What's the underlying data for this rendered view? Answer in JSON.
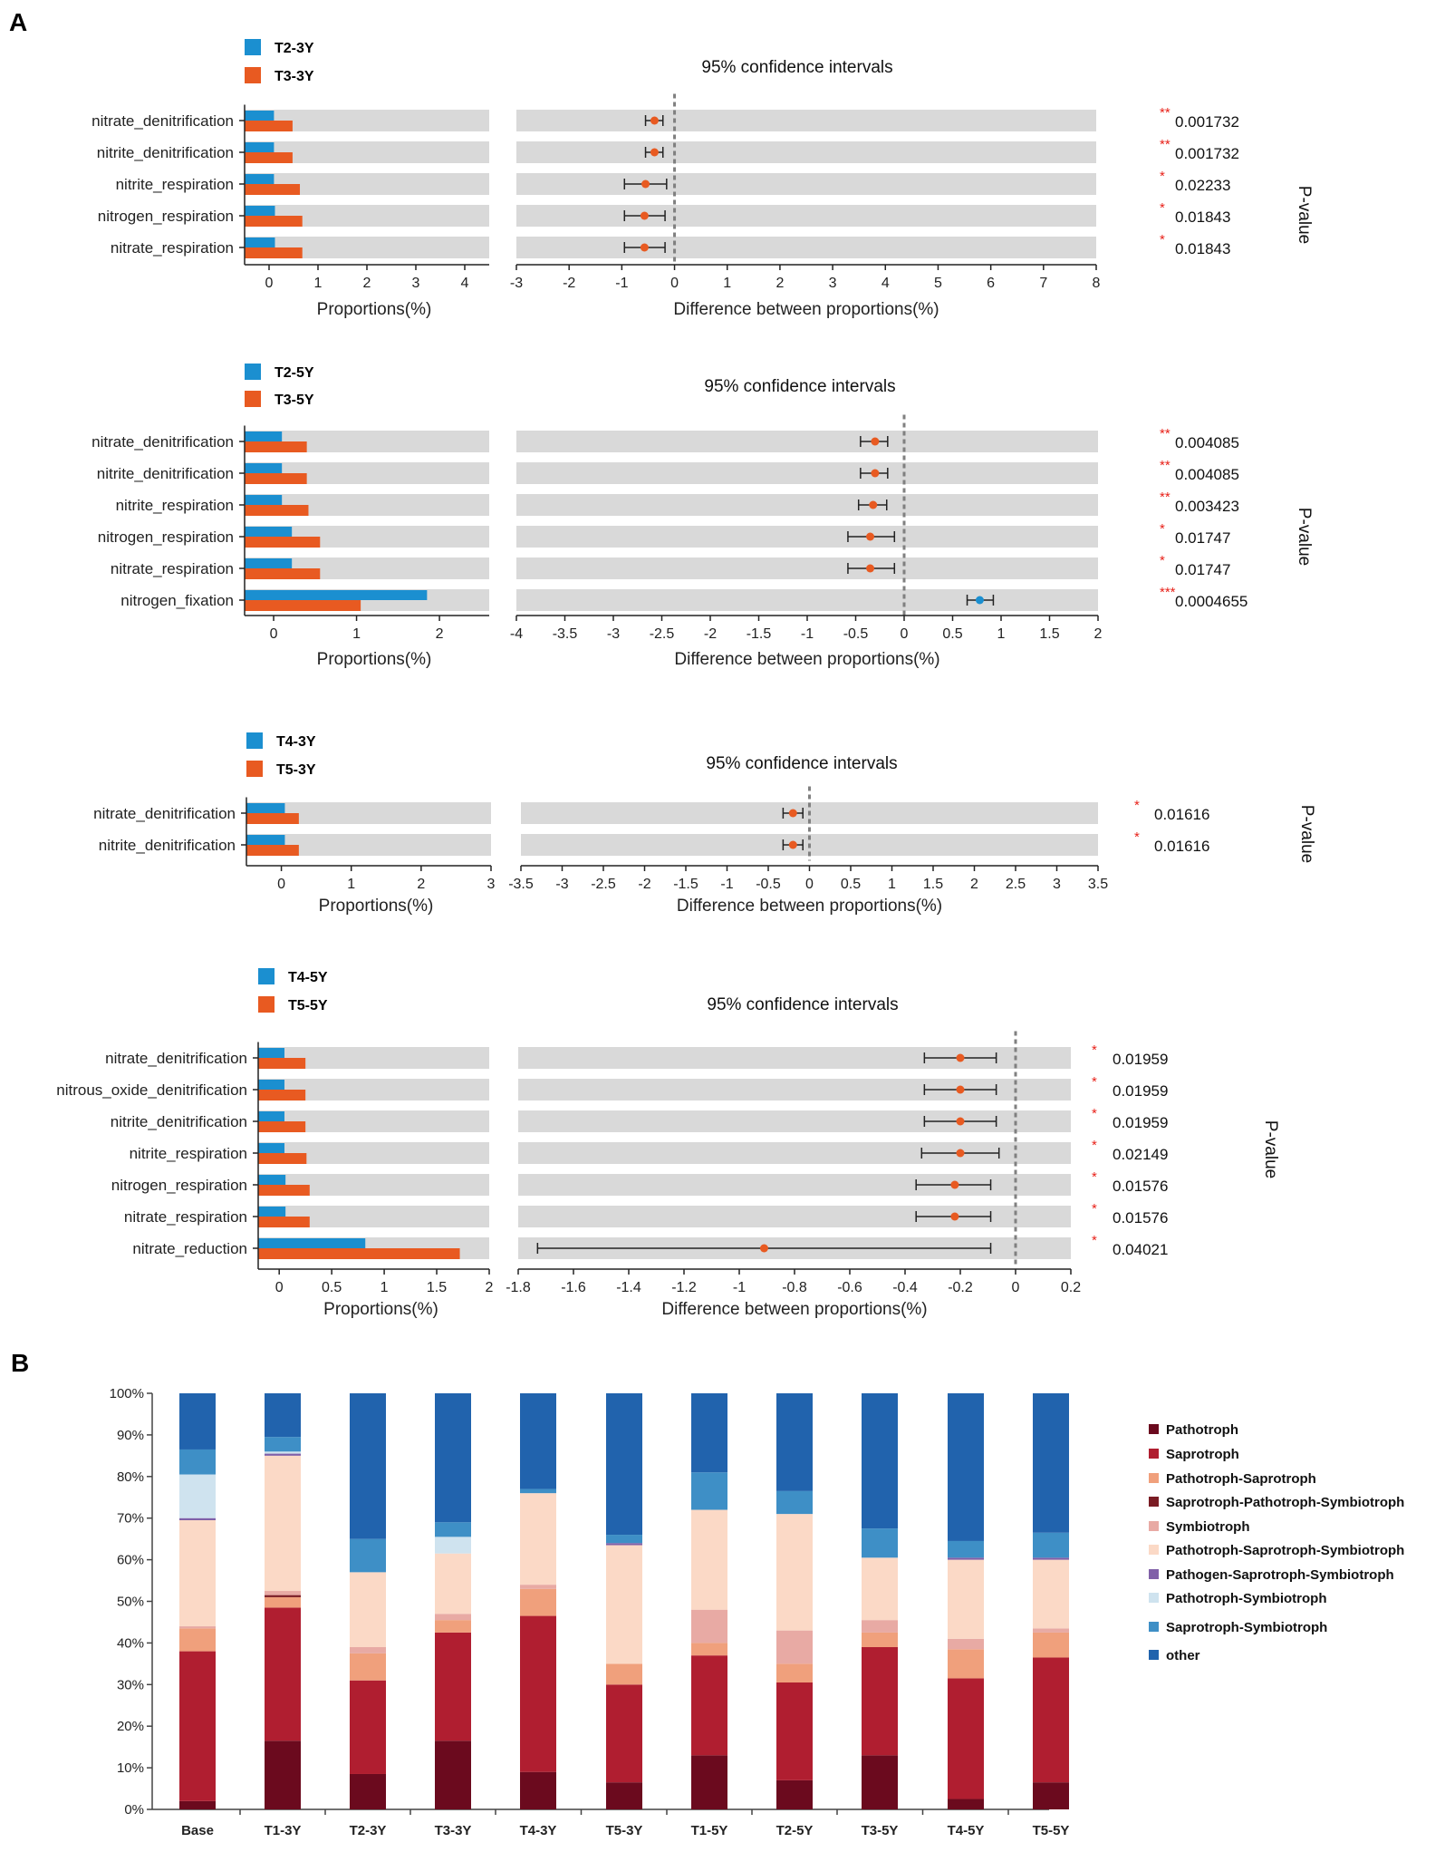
{
  "panel_labels": {
    "a": "A",
    "b": "B"
  },
  "colors": {
    "blue": "#1b8fd0",
    "orange": "#e85a21",
    "row_bg": "#d9d9d9",
    "star": "#e8221a",
    "zero_line": "#808080"
  },
  "chart_data": [
    {
      "type": "bar",
      "id": "p1",
      "legend": [
        "T2-3Y",
        "T3-3Y"
      ],
      "ci_title": "95% confidence intervals",
      "left_xlabel": "Proportions(%)",
      "right_xlabel": "Difference between proportions(%)",
      "pvalue_label": "P-value",
      "left_xlim": [
        -0.5,
        4.5
      ],
      "left_ticks": [
        0,
        1,
        2,
        3,
        4
      ],
      "left_tick_labels": [
        "0",
        "1",
        "2",
        "3",
        "4"
      ],
      "right_xlim": [
        -3,
        8
      ],
      "right_ticks": [
        -3,
        -2,
        -1,
        0,
        1,
        2,
        3,
        4,
        5,
        6,
        7,
        8
      ],
      "right_tick_labels": [
        "-3",
        "-2",
        "-1",
        "0",
        "1",
        "2",
        "3",
        "4",
        "5",
        "6",
        "7",
        "8"
      ],
      "rows": [
        {
          "label": "nitrate_denitrification",
          "a": 0.1,
          "b": 0.48,
          "diff": -0.38,
          "lo": -0.55,
          "hi": -0.22,
          "dot": "orange",
          "stars": "**",
          "p": "0.001732"
        },
        {
          "label": "nitrite_denitrification",
          "a": 0.1,
          "b": 0.48,
          "diff": -0.38,
          "lo": -0.55,
          "hi": -0.22,
          "dot": "orange",
          "stars": "**",
          "p": "0.001732"
        },
        {
          "label": "nitrite_respiration",
          "a": 0.1,
          "b": 0.63,
          "diff": -0.55,
          "lo": -0.95,
          "hi": -0.15,
          "dot": "orange",
          "stars": "*",
          "p": "0.02233"
        },
        {
          "label": "nitrogen_respiration",
          "a": 0.12,
          "b": 0.68,
          "diff": -0.57,
          "lo": -0.95,
          "hi": -0.18,
          "dot": "orange",
          "stars": "*",
          "p": "0.01843"
        },
        {
          "label": "nitrate_respiration",
          "a": 0.12,
          "b": 0.68,
          "diff": -0.57,
          "lo": -0.95,
          "hi": -0.18,
          "dot": "orange",
          "stars": "*",
          "p": "0.01843"
        }
      ]
    },
    {
      "type": "bar",
      "id": "p2",
      "legend": [
        "T2-5Y",
        "T3-5Y"
      ],
      "ci_title": "95% confidence intervals",
      "left_xlabel": "Proportions(%)",
      "right_xlabel": "Difference between proportions(%)",
      "pvalue_label": "P-value",
      "left_xlim": [
        -0.35,
        2.6
      ],
      "left_ticks": [
        0,
        1,
        2
      ],
      "left_tick_labels": [
        "0",
        "1",
        "2"
      ],
      "right_xlim": [
        -4,
        2
      ],
      "right_ticks": [
        -4,
        -3.5,
        -3,
        -2.5,
        -2,
        -1.5,
        -1,
        -0.5,
        0,
        0.5,
        1,
        1.5,
        2
      ],
      "right_tick_labels": [
        "-4",
        "-3.5",
        "-3",
        "-2.5",
        "-2",
        "-1.5",
        "-1",
        "-0.5",
        "0",
        "0.5",
        "1",
        "1.5",
        "2"
      ],
      "rows": [
        {
          "label": "nitrate_denitrification",
          "a": 0.1,
          "b": 0.4,
          "diff": -0.3,
          "lo": -0.45,
          "hi": -0.17,
          "dot": "orange",
          "stars": "**",
          "p": "0.004085"
        },
        {
          "label": "nitrite_denitrification",
          "a": 0.1,
          "b": 0.4,
          "diff": -0.3,
          "lo": -0.45,
          "hi": -0.17,
          "dot": "orange",
          "stars": "**",
          "p": "0.004085"
        },
        {
          "label": "nitrite_respiration",
          "a": 0.1,
          "b": 0.42,
          "diff": -0.32,
          "lo": -0.47,
          "hi": -0.18,
          "dot": "orange",
          "stars": "**",
          "p": "0.003423"
        },
        {
          "label": "nitrogen_respiration",
          "a": 0.22,
          "b": 0.56,
          "diff": -0.35,
          "lo": -0.58,
          "hi": -0.1,
          "dot": "orange",
          "stars": "*",
          "p": "0.01747"
        },
        {
          "label": "nitrate_respiration",
          "a": 0.22,
          "b": 0.56,
          "diff": -0.35,
          "lo": -0.58,
          "hi": -0.1,
          "dot": "orange",
          "stars": "*",
          "p": "0.01747"
        },
        {
          "label": "nitrogen_fixation",
          "a": 1.85,
          "b": 1.05,
          "diff": 0.78,
          "lo": 0.65,
          "hi": 0.92,
          "dot": "blue",
          "stars": "***",
          "p": "0.0004655"
        }
      ]
    },
    {
      "type": "bar",
      "id": "p3",
      "legend": [
        "T4-3Y",
        "T5-3Y"
      ],
      "ci_title": "95% confidence intervals",
      "left_xlabel": "Proportions(%)",
      "right_xlabel": "Difference between proportions(%)",
      "pvalue_label": "P-value",
      "left_xlim": [
        -0.5,
        3
      ],
      "left_ticks": [
        0,
        1,
        2,
        3
      ],
      "left_tick_labels": [
        "0",
        "1",
        "2",
        "3"
      ],
      "right_xlim": [
        -3.5,
        3.5
      ],
      "right_ticks": [
        -3.5,
        -3,
        -2.5,
        -2,
        -1.5,
        -1,
        -0.5,
        0,
        0.5,
        1,
        1.5,
        2,
        2.5,
        3,
        3.5
      ],
      "right_tick_labels": [
        "-3.5",
        "-3",
        "-2.5",
        "-2",
        "-1.5",
        "-1",
        "-0.5",
        "0",
        "0.5",
        "1",
        "1.5",
        "2",
        "2.5",
        "3",
        "3.5"
      ],
      "rows": [
        {
          "label": "nitrate_denitrification",
          "a": 0.05,
          "b": 0.25,
          "diff": -0.2,
          "lo": -0.32,
          "hi": -0.08,
          "dot": "orange",
          "stars": "*",
          "p": "0.01616"
        },
        {
          "label": "nitrite_denitrification",
          "a": 0.05,
          "b": 0.25,
          "diff": -0.2,
          "lo": -0.32,
          "hi": -0.08,
          "dot": "orange",
          "stars": "*",
          "p": "0.01616"
        }
      ]
    },
    {
      "type": "bar",
      "id": "p4",
      "legend": [
        "T4-5Y",
        "T5-5Y"
      ],
      "ci_title": "95% confidence intervals",
      "left_xlabel": "Proportions(%)",
      "right_xlabel": "Difference between proportions(%)",
      "pvalue_label": "P-value",
      "left_xlim": [
        -0.2,
        2
      ],
      "left_ticks": [
        0,
        0.5,
        1,
        1.5,
        2
      ],
      "left_tick_labels": [
        "0",
        "0.5",
        "1",
        "1.5",
        "2"
      ],
      "right_xlim": [
        -1.8,
        0.2
      ],
      "right_ticks": [
        -1.8,
        -1.6,
        -1.4,
        -1.2,
        -1,
        -0.8,
        -0.6,
        -0.4,
        -0.2,
        0,
        0.2
      ],
      "right_tick_labels": [
        "-1.8",
        "-1.6",
        "-1.4",
        "-1.2",
        "-1",
        "-0.8",
        "-0.6",
        "-0.4",
        "-0.2",
        "0",
        "0.2"
      ],
      "rows": [
        {
          "label": "nitrate_denitrification",
          "a": 0.05,
          "b": 0.25,
          "diff": -0.2,
          "lo": -0.33,
          "hi": -0.07,
          "dot": "orange",
          "stars": "*",
          "p": "0.01959"
        },
        {
          "label": "nitrous_oxide_denitrification",
          "a": 0.05,
          "b": 0.25,
          "diff": -0.2,
          "lo": -0.33,
          "hi": -0.07,
          "dot": "orange",
          "stars": "*",
          "p": "0.01959"
        },
        {
          "label": "nitrite_denitrification",
          "a": 0.05,
          "b": 0.25,
          "diff": -0.2,
          "lo": -0.33,
          "hi": -0.07,
          "dot": "orange",
          "stars": "*",
          "p": "0.01959"
        },
        {
          "label": "nitrite_respiration",
          "a": 0.05,
          "b": 0.26,
          "diff": -0.2,
          "lo": -0.34,
          "hi": -0.06,
          "dot": "orange",
          "stars": "*",
          "p": "0.02149"
        },
        {
          "label": "nitrogen_respiration",
          "a": 0.06,
          "b": 0.29,
          "diff": -0.22,
          "lo": -0.36,
          "hi": -0.09,
          "dot": "orange",
          "stars": "*",
          "p": "0.01576"
        },
        {
          "label": "nitrate_respiration",
          "a": 0.06,
          "b": 0.29,
          "diff": -0.22,
          "lo": -0.36,
          "hi": -0.09,
          "dot": "orange",
          "stars": "*",
          "p": "0.01576"
        },
        {
          "label": "nitrate_reduction",
          "a": 0.82,
          "b": 1.72,
          "diff": -0.91,
          "lo": -1.73,
          "hi": -0.09,
          "dot": "orange",
          "stars": "*",
          "p": "0.04021"
        }
      ]
    },
    {
      "type": "bar",
      "id": "stack",
      "stacked": true,
      "ylim": [
        0,
        100
      ],
      "y_ticks": [
        0,
        10,
        20,
        30,
        40,
        50,
        60,
        70,
        80,
        90,
        100
      ],
      "y_tick_labels": [
        "0%",
        "10%",
        "20%",
        "30%",
        "40%",
        "50%",
        "60%",
        "70%",
        "80%",
        "90%",
        "100%"
      ],
      "categories": [
        "Base",
        "T1-3Y",
        "T2-3Y",
        "T3-3Y",
        "T4-3Y",
        "T5-3Y",
        "T1-5Y",
        "T2-5Y",
        "T3-5Y",
        "T4-5Y",
        "T5-5Y"
      ],
      "series": [
        {
          "name": "Pathotroph",
          "color": "#6b0a1e",
          "values": [
            2,
            16.5,
            8.5,
            16.5,
            9,
            6.5,
            13,
            7,
            13,
            2.5,
            6.5
          ]
        },
        {
          "name": "Saprotroph",
          "color": "#b01e30",
          "values": [
            36,
            32,
            22.5,
            26,
            37.5,
            23.5,
            24,
            23.5,
            26,
            29,
            30
          ]
        },
        {
          "name": "Pathotroph-Saprotroph",
          "color": "#f0a07c",
          "values": [
            5.5,
            2.5,
            6.5,
            3,
            6.5,
            5,
            3,
            4.5,
            3.5,
            7,
            6
          ]
        },
        {
          "name": "Saprotroph-Pathotroph-Symbiotroph",
          "color": "#7a1c24",
          "values": [
            0,
            0.5,
            0,
            0,
            0,
            0,
            0,
            0,
            0,
            0,
            0
          ]
        },
        {
          "name": "Symbiotroph",
          "color": "#e8aaa4",
          "values": [
            0.5,
            1,
            1.5,
            1.5,
            1,
            0,
            8,
            8,
            3,
            2.5,
            1
          ]
        },
        {
          "name": "Pathotroph-Saprotroph-Symbiotroph",
          "color": "#fbd9c6",
          "values": [
            25.5,
            32.5,
            18,
            14.5,
            22,
            28.5,
            24,
            28,
            15,
            19,
            16.5
          ]
        },
        {
          "name": "Pathogen-Saprotroph-Symbiotroph",
          "color": "#8060a8",
          "values": [
            0.5,
            0.5,
            0,
            0,
            0,
            0.5,
            0,
            0,
            0,
            0.5,
            0.5
          ]
        },
        {
          "name": "Pathotroph-Symbiotroph",
          "color": "#cfe3ef",
          "values": [
            10.5,
            0.5,
            0,
            4,
            0,
            0,
            0,
            0,
            0,
            0,
            0
          ]
        },
        {
          "name": "Saprotroph-Symbiotroph",
          "color": "#3e8fc6",
          "values": [
            6,
            3.5,
            8,
            3.5,
            1,
            2,
            9,
            5.5,
            7,
            4,
            6
          ]
        },
        {
          "name": "other",
          "color": "#2163ad",
          "values": [
            13.5,
            10.5,
            35,
            31,
            23,
            34,
            19,
            23.5,
            32.5,
            35.5,
            33.5
          ]
        }
      ]
    }
  ]
}
